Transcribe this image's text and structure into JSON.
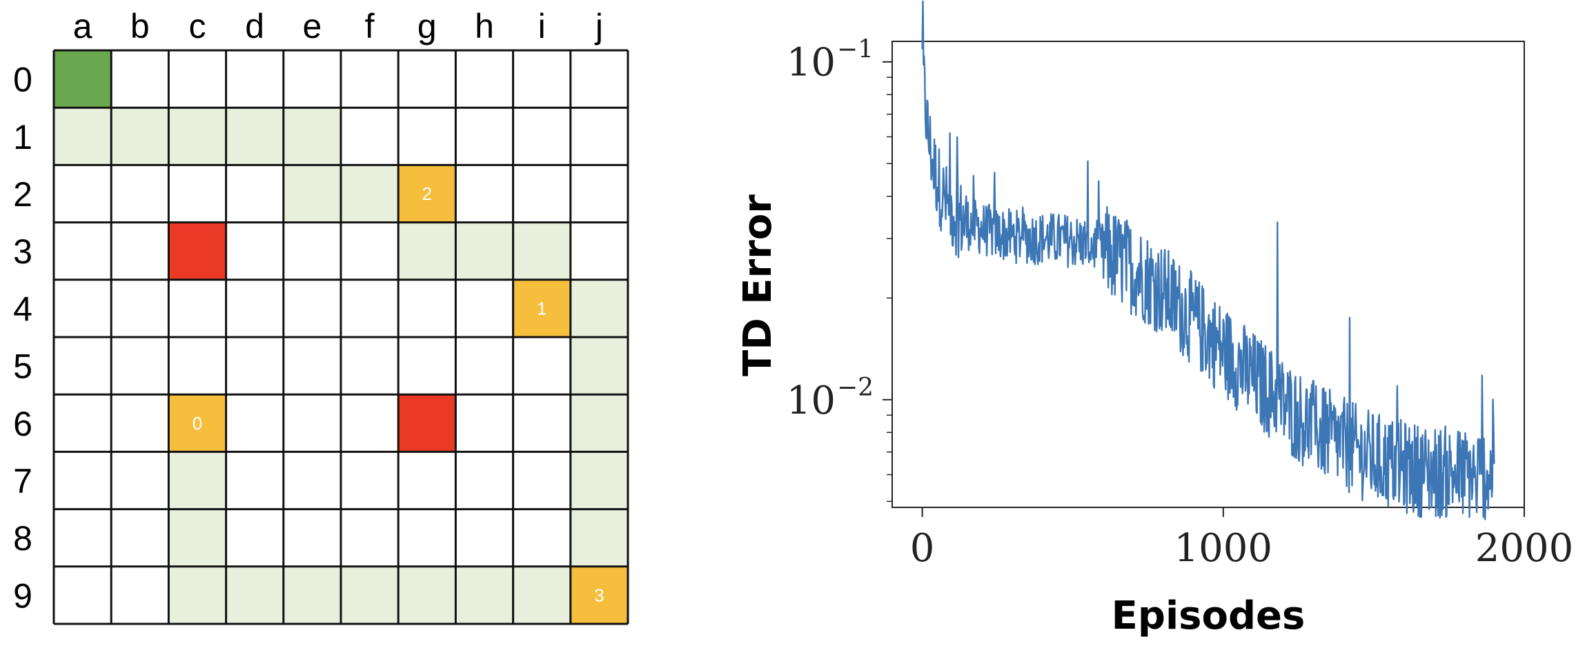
{
  "gridworld": {
    "columns": [
      "a",
      "b",
      "c",
      "d",
      "e",
      "f",
      "g",
      "h",
      "i",
      "j"
    ],
    "rows": [
      "0",
      "1",
      "2",
      "3",
      "4",
      "5",
      "6",
      "7",
      "8",
      "9"
    ],
    "colors": {
      "empty": "#ffffff",
      "start": "#6aa84f",
      "path": "#e8f0dd",
      "obstacle": "#ea3a26",
      "goal": "#f6be3d",
      "line": "#111111"
    },
    "start_cell": {
      "col": "a",
      "row": "0"
    },
    "obstacle_cells": [
      {
        "col": "c",
        "row": "3"
      },
      {
        "col": "g",
        "row": "6"
      }
    ],
    "goal_cells": [
      {
        "col": "c",
        "row": "6",
        "label": "0"
      },
      {
        "col": "i",
        "row": "4",
        "label": "1"
      },
      {
        "col": "g",
        "row": "2",
        "label": "2"
      },
      {
        "col": "j",
        "row": "9",
        "label": "3"
      }
    ],
    "path_cells": [
      {
        "col": "a",
        "row": "1"
      },
      {
        "col": "b",
        "row": "1"
      },
      {
        "col": "c",
        "row": "1"
      },
      {
        "col": "d",
        "row": "1"
      },
      {
        "col": "e",
        "row": "1"
      },
      {
        "col": "e",
        "row": "2"
      },
      {
        "col": "f",
        "row": "2"
      },
      {
        "col": "g",
        "row": "3"
      },
      {
        "col": "h",
        "row": "3"
      },
      {
        "col": "i",
        "row": "3"
      },
      {
        "col": "j",
        "row": "4"
      },
      {
        "col": "j",
        "row": "5"
      },
      {
        "col": "j",
        "row": "6"
      },
      {
        "col": "j",
        "row": "7"
      },
      {
        "col": "j",
        "row": "8"
      },
      {
        "col": "c",
        "row": "7"
      },
      {
        "col": "c",
        "row": "8"
      },
      {
        "col": "c",
        "row": "9"
      },
      {
        "col": "d",
        "row": "9"
      },
      {
        "col": "e",
        "row": "9"
      },
      {
        "col": "f",
        "row": "9"
      },
      {
        "col": "g",
        "row": "9"
      },
      {
        "col": "h",
        "row": "9"
      },
      {
        "col": "i",
        "row": "9"
      }
    ]
  },
  "chart_data": {
    "type": "line",
    "title": "",
    "xlabel": "Episodes",
    "ylabel": "TD Error",
    "yscale": "log",
    "xlim": [
      -100,
      2000
    ],
    "ylim": [
      0.0048,
      0.115
    ],
    "xticks": [
      0,
      1000,
      2000
    ],
    "yticks": [
      {
        "value": 0.1,
        "base": "10",
        "exponent": "−1"
      },
      {
        "value": 0.01,
        "base": "10",
        "exponent": "−2"
      }
    ],
    "grid": false,
    "legend": "none",
    "line_color": "#3d76b5",
    "series": [
      {
        "x": [
          0,
          10,
          20,
          40,
          60,
          80,
          100,
          130,
          160,
          200,
          250,
          300,
          350,
          400,
          450,
          500,
          550,
          600,
          650,
          700,
          750,
          800,
          850,
          900,
          950,
          1000,
          1050,
          1100,
          1150,
          1200,
          1250,
          1300,
          1350,
          1400,
          1450,
          1500,
          1550,
          1600,
          1650,
          1700,
          1750,
          1800,
          1850,
          1900
        ],
        "values": [
          0.1,
          0.075,
          0.06,
          0.048,
          0.042,
          0.038,
          0.036,
          0.034,
          0.033,
          0.032,
          0.031,
          0.0305,
          0.0302,
          0.03,
          0.0298,
          0.0295,
          0.029,
          0.0278,
          0.026,
          0.0245,
          0.0228,
          0.021,
          0.019,
          0.0172,
          0.0155,
          0.014,
          0.0127,
          0.0116,
          0.0106,
          0.0097,
          0.0089,
          0.0083,
          0.0078,
          0.0074,
          0.007,
          0.0067,
          0.0065,
          0.0063,
          0.0062,
          0.0061,
          0.0061,
          0.006,
          0.006,
          0.0061
        ]
      }
    ]
  }
}
